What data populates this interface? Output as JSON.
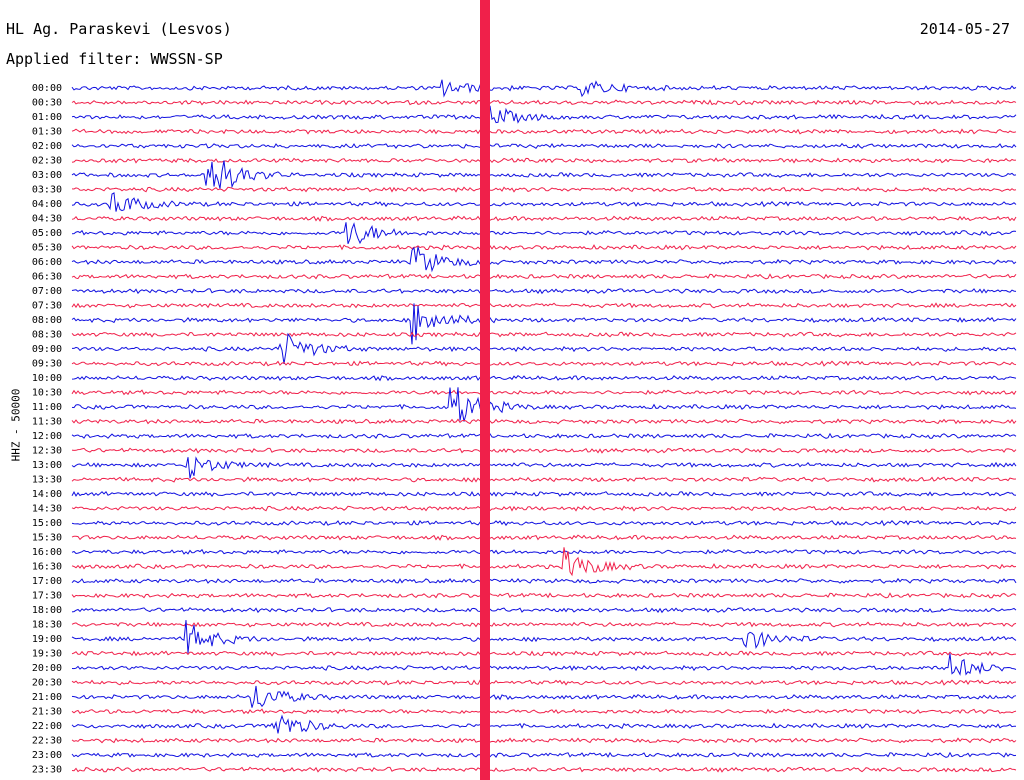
{
  "header": {
    "station": "HL Ag. Paraskevi (Lesvos)",
    "date": "2014-05-27",
    "filter": "Applied filter: WWSSN-SP"
  },
  "chart_data": {
    "type": "line",
    "ylabel": "HHZ - 50000",
    "row_labels": [
      "00:00",
      "00:30",
      "01:00",
      "01:30",
      "02:00",
      "02:30",
      "03:00",
      "03:30",
      "04:00",
      "04:30",
      "05:00",
      "05:30",
      "06:00",
      "06:30",
      "07:00",
      "07:30",
      "08:00",
      "08:30",
      "09:00",
      "09:30",
      "10:00",
      "10:30",
      "11:00",
      "11:30",
      "12:00",
      "12:30",
      "13:00",
      "13:30",
      "14:00",
      "14:30",
      "15:00",
      "15:30",
      "16:00",
      "16:30",
      "17:00",
      "17:30",
      "18:00",
      "18:30",
      "19:00",
      "19:30",
      "20:00",
      "20:30",
      "21:00",
      "21:30",
      "22:00",
      "22:30",
      "23:00",
      "23:30"
    ],
    "trace_colors": [
      "#1010e0",
      "#f0204a"
    ],
    "grid": false,
    "events": [
      {
        "row": 0,
        "x": 0.4,
        "amp": 1.0
      },
      {
        "row": 0,
        "x": 0.55,
        "amp": 1.0
      },
      {
        "row": 2,
        "x": 0.45,
        "amp": 1.3
      },
      {
        "row": 6,
        "x": 0.15,
        "amp": 3.5
      },
      {
        "row": 8,
        "x": 0.05,
        "amp": 1.6
      },
      {
        "row": 10,
        "x": 0.3,
        "amp": 1.8
      },
      {
        "row": 12,
        "x": 0.37,
        "amp": 2.0
      },
      {
        "row": 16,
        "x": 0.37,
        "amp": 2.6
      },
      {
        "row": 18,
        "x": 0.23,
        "amp": 2.2
      },
      {
        "row": 22,
        "x": 0.41,
        "amp": 3.0
      },
      {
        "row": 26,
        "x": 0.13,
        "amp": 1.6
      },
      {
        "row": 33,
        "x": 0.53,
        "amp": 2.0
      },
      {
        "row": 38,
        "x": 0.13,
        "amp": 2.0
      },
      {
        "row": 38,
        "x": 0.72,
        "amp": 1.4
      },
      {
        "row": 40,
        "x": 0.94,
        "amp": 1.5
      },
      {
        "row": 42,
        "x": 0.2,
        "amp": 1.8
      },
      {
        "row": 44,
        "x": 0.22,
        "amp": 2.0
      }
    ]
  }
}
